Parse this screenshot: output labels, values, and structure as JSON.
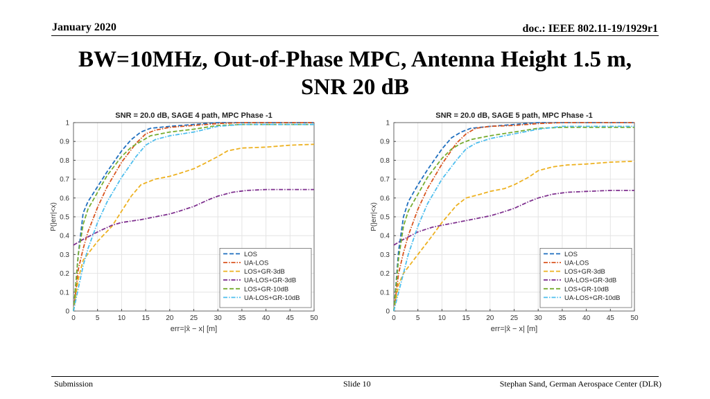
{
  "header": {
    "date": "January 2020",
    "doc": "doc.: IEEE 802.11-19/1929r1"
  },
  "slide": {
    "title_line1": "BW=10MHz, Out-of-Phase MPC, Antenna Height 1.5 m,",
    "title_line2": "SNR 20 dB"
  },
  "footer": {
    "left": "Submission",
    "center": "Slide 10",
    "right": "Stephan Sand, German Aerospace Center (DLR)"
  },
  "chart_data": [
    {
      "type": "line",
      "title": "SNR = 20.0 dB, SAGE 4 path, MPC Phase -1",
      "xlabel": "err=|x̂ − x| [m]",
      "ylabel": "P(|err|<x)",
      "xlim": [
        0,
        50
      ],
      "ylim": [
        0,
        1
      ],
      "xticks": [
        0,
        5,
        10,
        15,
        20,
        25,
        30,
        35,
        40,
        45,
        50
      ],
      "yticks": [
        0,
        0.1,
        0.2,
        0.3,
        0.4,
        0.5,
        0.6,
        0.7,
        0.8,
        0.9,
        1
      ],
      "grid": true,
      "legend_position": "bottom-right",
      "series": [
        {
          "name": "LOS",
          "color": "#1f6fbf",
          "dash": "dashed",
          "x": [
            0,
            1,
            2,
            3,
            5,
            7,
            10,
            12,
            14,
            16,
            20,
            30,
            40,
            50
          ],
          "y": [
            0,
            0.3,
            0.52,
            0.58,
            0.66,
            0.74,
            0.85,
            0.91,
            0.95,
            0.97,
            0.98,
            1.0,
            1.0,
            1.0
          ]
        },
        {
          "name": "UA-LOS",
          "color": "#d9541e",
          "dash": "dashdot",
          "x": [
            0,
            1,
            2,
            3,
            5,
            7,
            10,
            13,
            15,
            17,
            20,
            25,
            30,
            35,
            50
          ],
          "y": [
            0,
            0.22,
            0.33,
            0.42,
            0.55,
            0.66,
            0.79,
            0.89,
            0.94,
            0.96,
            0.975,
            0.985,
            0.995,
            1.0,
            1.0
          ]
        },
        {
          "name": "LOS+GR-3dB",
          "color": "#edb120",
          "dash": "dashed",
          "x": [
            0,
            1,
            2,
            5,
            8,
            10,
            12,
            14,
            15,
            17,
            20,
            22,
            25,
            27,
            30,
            32,
            35,
            40,
            45,
            50
          ],
          "y": [
            0,
            0.17,
            0.27,
            0.37,
            0.45,
            0.53,
            0.61,
            0.67,
            0.68,
            0.7,
            0.715,
            0.73,
            0.755,
            0.78,
            0.82,
            0.85,
            0.865,
            0.87,
            0.88,
            0.885
          ]
        },
        {
          "name": "UA-LOS+GR-3dB",
          "color": "#7e2f8e",
          "dash": "dashdot",
          "x": [
            0,
            2,
            5,
            8,
            10,
            14,
            17,
            20,
            22,
            25,
            28,
            30,
            33,
            36,
            40,
            45,
            50
          ],
          "y": [
            0.35,
            0.38,
            0.42,
            0.455,
            0.47,
            0.485,
            0.5,
            0.515,
            0.53,
            0.555,
            0.59,
            0.61,
            0.63,
            0.64,
            0.645,
            0.645,
            0.645
          ]
        },
        {
          "name": "LOS+GR-10dB",
          "color": "#77ac30",
          "dash": "dashed",
          "x": [
            0,
            1,
            2,
            3,
            5,
            7,
            10,
            12,
            14,
            16,
            20,
            25,
            30,
            35,
            40,
            50
          ],
          "y": [
            0,
            0.3,
            0.46,
            0.54,
            0.63,
            0.72,
            0.82,
            0.87,
            0.9,
            0.93,
            0.95,
            0.965,
            0.985,
            0.99,
            0.99,
            0.99
          ]
        },
        {
          "name": "UA-LOS+GR-10dB",
          "color": "#4dbeee",
          "dash": "dashdot",
          "x": [
            0,
            1,
            2,
            3,
            5,
            7,
            10,
            13,
            15,
            17,
            20,
            25,
            30,
            35,
            40,
            50
          ],
          "y": [
            0,
            0.12,
            0.24,
            0.33,
            0.47,
            0.58,
            0.71,
            0.82,
            0.88,
            0.91,
            0.93,
            0.95,
            0.98,
            0.99,
            0.99,
            0.99
          ]
        }
      ]
    },
    {
      "type": "line",
      "title": "SNR = 20.0 dB, SAGE 5 path, MPC Phase -1",
      "xlabel": "err=|x̂ − x| [m]",
      "ylabel": "P(|err|<x)",
      "xlim": [
        0,
        50
      ],
      "ylim": [
        0,
        1
      ],
      "xticks": [
        0,
        5,
        10,
        15,
        20,
        25,
        30,
        35,
        40,
        45,
        50
      ],
      "yticks": [
        0,
        0.1,
        0.2,
        0.3,
        0.4,
        0.5,
        0.6,
        0.7,
        0.8,
        0.9,
        1
      ],
      "grid": true,
      "legend_position": "bottom-right",
      "series": [
        {
          "name": "LOS",
          "color": "#1f6fbf",
          "dash": "dashed",
          "x": [
            0,
            1,
            2,
            3,
            5,
            7,
            10,
            12,
            14,
            16,
            20,
            30,
            40,
            50
          ],
          "y": [
            0,
            0.32,
            0.5,
            0.58,
            0.67,
            0.75,
            0.86,
            0.92,
            0.95,
            0.97,
            0.98,
            1.0,
            1.0,
            1.0
          ]
        },
        {
          "name": "UA-LOS",
          "color": "#d9541e",
          "dash": "dashdot",
          "x": [
            0,
            1,
            2,
            3,
            5,
            7,
            10,
            13,
            15,
            17,
            20,
            25,
            30,
            35,
            50
          ],
          "y": [
            0,
            0.2,
            0.31,
            0.4,
            0.54,
            0.65,
            0.78,
            0.89,
            0.94,
            0.97,
            0.98,
            0.985,
            0.995,
            1.0,
            1.0
          ]
        },
        {
          "name": "LOS+GR-3dB",
          "color": "#edb120",
          "dash": "dashed",
          "x": [
            0,
            1,
            2,
            5,
            8,
            10,
            13,
            15,
            18,
            20,
            23,
            25,
            28,
            30,
            33,
            36,
            40,
            45,
            50
          ],
          "y": [
            0,
            0.14,
            0.2,
            0.3,
            0.4,
            0.47,
            0.56,
            0.6,
            0.62,
            0.635,
            0.65,
            0.67,
            0.71,
            0.745,
            0.765,
            0.775,
            0.78,
            0.79,
            0.795
          ]
        },
        {
          "name": "UA-LOS+GR-3dB",
          "color": "#7e2f8e",
          "dash": "dashdot",
          "x": [
            0,
            2,
            5,
            8,
            10,
            13,
            16,
            20,
            22,
            25,
            28,
            30,
            33,
            36,
            40,
            45,
            50
          ],
          "y": [
            0.35,
            0.38,
            0.42,
            0.445,
            0.455,
            0.47,
            0.485,
            0.505,
            0.52,
            0.545,
            0.58,
            0.6,
            0.62,
            0.63,
            0.635,
            0.64,
            0.64
          ]
        },
        {
          "name": "LOS+GR-10dB",
          "color": "#77ac30",
          "dash": "dashed",
          "x": [
            0,
            1,
            2,
            3,
            5,
            7,
            10,
            12,
            14,
            16,
            20,
            25,
            30,
            35,
            40,
            50
          ],
          "y": [
            0,
            0.28,
            0.45,
            0.53,
            0.62,
            0.71,
            0.81,
            0.86,
            0.89,
            0.91,
            0.93,
            0.95,
            0.97,
            0.975,
            0.975,
            0.975
          ]
        },
        {
          "name": "UA-LOS+GR-10dB",
          "color": "#4dbeee",
          "dash": "dashdot",
          "x": [
            0,
            1,
            2,
            3,
            5,
            7,
            10,
            13,
            15,
            17,
            20,
            25,
            30,
            35,
            40,
            50
          ],
          "y": [
            0,
            0.1,
            0.2,
            0.3,
            0.45,
            0.57,
            0.7,
            0.8,
            0.86,
            0.89,
            0.915,
            0.94,
            0.965,
            0.98,
            0.98,
            0.98
          ]
        }
      ]
    }
  ]
}
